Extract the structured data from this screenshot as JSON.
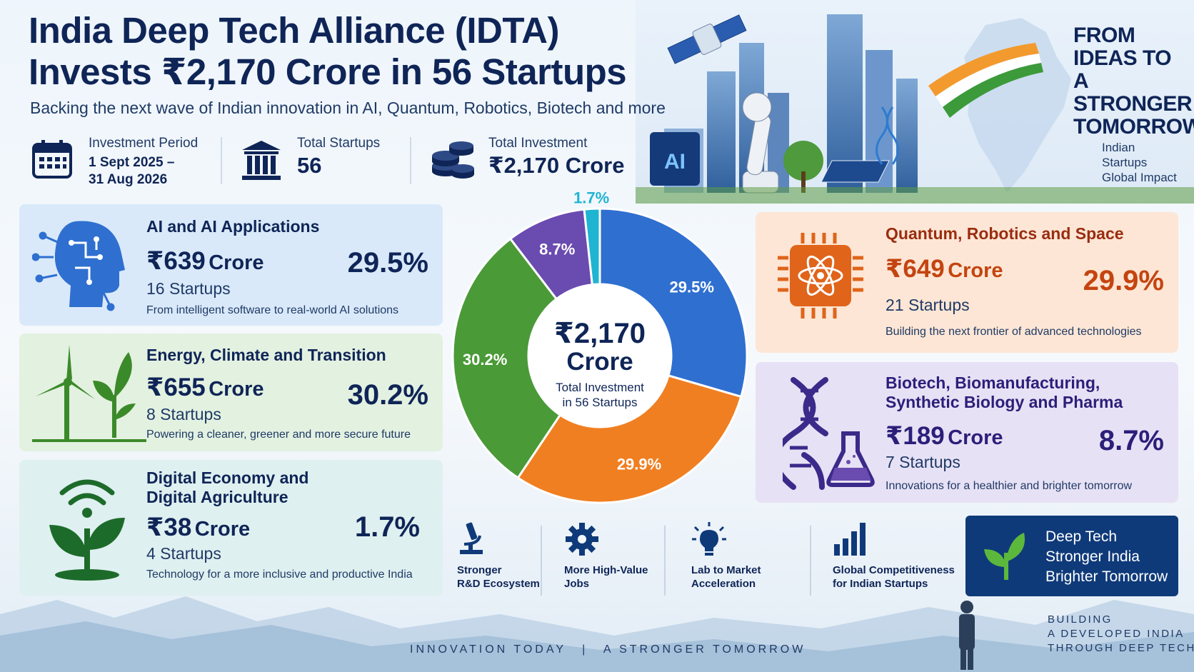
{
  "header": {
    "title_line1": "India Deep Tech Alliance (IDTA)",
    "title_line2": "Invests ₹2,170 Crore in 56 Startups",
    "subtitle": "Backing the next wave of Indian innovation in AI, Quantum, Robotics, Biotech and more"
  },
  "stats": {
    "period_label": "Investment Period",
    "period_line1": "1 Sept 2025 –",
    "period_line2": "31 Aug 2026",
    "startups_label": "Total Startups",
    "startups_value": "56",
    "investment_label": "Total Investment",
    "investment_value": "₹2,170 Crore"
  },
  "hero": {
    "tagline": [
      "FROM",
      "IDEAS TO",
      "A STRONGER",
      "TOMORROW"
    ],
    "sub": [
      "Indian",
      "Startups",
      "Global Impact"
    ],
    "chip_label": "AI"
  },
  "sectors": {
    "ai": {
      "name": "AI and AI Applications",
      "amount": "₹639",
      "unit": "Crore",
      "pct": "29.5%",
      "count": "16 Startups",
      "desc": "From intelligent software to real-world AI solutions"
    },
    "energy": {
      "name": "Energy, Climate and Transition",
      "amount": "₹655",
      "unit": "Crore",
      "pct": "30.2%",
      "count": "8 Startups",
      "desc": "Powering a cleaner, greener and more secure future"
    },
    "digital": {
      "name_line1": "Digital Economy and",
      "name_line2": "Digital Agriculture",
      "amount": "₹38",
      "unit": "Crore",
      "pct": "1.7%",
      "count": "4 Startups",
      "desc": "Technology for a more inclusive and productive India"
    },
    "quantum": {
      "name": "Quantum, Robotics and Space",
      "amount": "₹649",
      "unit": "Crore",
      "pct": "29.9%",
      "count": "21 Startups",
      "desc": "Building the next frontier of advanced technologies"
    },
    "bio": {
      "name_line1": "Biotech, Biomanufacturing,",
      "name_line2": "Synthetic Biology and Pharma",
      "amount": "₹189",
      "unit": "Crore",
      "pct": "8.7%",
      "count": "7 Startups",
      "desc": "Innovations for a healthier and brighter tomorrow"
    }
  },
  "chart_data": {
    "type": "pie",
    "center_line1": "₹2,170",
    "center_line2": "Crore",
    "center_line3": "Total Investment",
    "center_line4": "in 56 Startups",
    "slices": [
      {
        "label": "29.5%",
        "value": 29.5,
        "color": "#2f6fd0"
      },
      {
        "label": "29.9%",
        "value": 29.9,
        "color": "#f07f22"
      },
      {
        "label": "30.2%",
        "value": 30.2,
        "color": "#4a9a37"
      },
      {
        "label": "8.7%",
        "value": 8.7,
        "color": "#6a4bb0"
      },
      {
        "label": "1.7%",
        "value": 1.7,
        "color": "#1fb4d2"
      }
    ]
  },
  "benefits": [
    {
      "line1": "Stronger",
      "line2": "R&D Ecosystem",
      "icon": "microscope-icon"
    },
    {
      "line1": "More High-Value",
      "line2": "Jobs",
      "icon": "gear-icon"
    },
    {
      "line1": "Lab to Market",
      "line2": "Acceleration",
      "icon": "lightbulb-icon"
    },
    {
      "line1": "Global Competitiveness",
      "line2": "for Indian Startups",
      "icon": "bar-chart-icon"
    }
  ],
  "banner": {
    "line1": "Deep Tech",
    "line2": "Stronger India",
    "line3": "Brighter Tomorrow"
  },
  "footer": {
    "center_left": "INNOVATION TODAY",
    "center_sep": "|",
    "center_right": "A STRONGER TOMORROW",
    "right_line1": "BUILDING",
    "right_line2": "A DEVELOPED INDIA",
    "right_line3": "THROUGH DEEP TECH"
  },
  "colors": {
    "navy": "#0f2557",
    "ai": "#2f6fd0",
    "energy": "#4a9a37",
    "quantum": "#e0641a",
    "bio": "#3b2a8a"
  }
}
